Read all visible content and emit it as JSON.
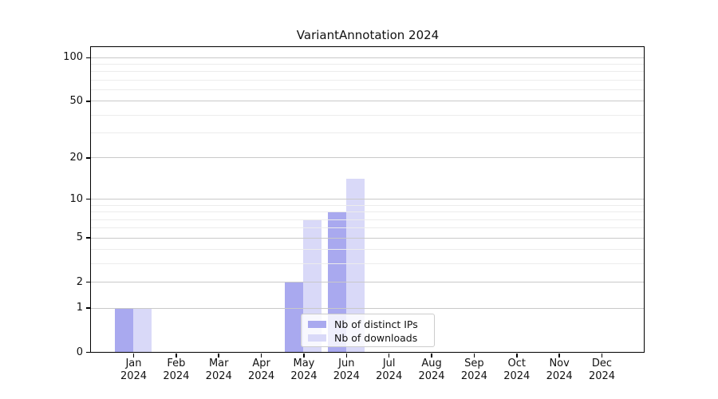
{
  "chart_data": {
    "type": "bar",
    "title": "VariantAnnotation 2024",
    "year": "2024",
    "months": [
      "Jan",
      "Feb",
      "Mar",
      "Apr",
      "May",
      "Jun",
      "Jul",
      "Aug",
      "Sep",
      "Oct",
      "Nov",
      "Dec"
    ],
    "series": [
      {
        "name": "Nb of distinct IPs",
        "color": "#a9a9ef",
        "values": [
          1,
          0,
          0,
          0,
          2,
          8,
          0,
          0,
          0,
          0,
          0,
          0
        ]
      },
      {
        "name": "Nb of downloads",
        "color": "#d9d9f8",
        "values": [
          1,
          0,
          0,
          0,
          7,
          14,
          0,
          0,
          0,
          0,
          0,
          0
        ]
      }
    ],
    "xlabel": "",
    "ylabel": "",
    "y_scale": "log1p",
    "ylim": [
      0,
      117.5
    ],
    "y_tick_labels": [
      100,
      50,
      20,
      10,
      5,
      2,
      1,
      0
    ],
    "y_minor_gridlines": [
      3,
      4,
      6,
      7,
      8,
      9,
      30,
      40,
      60,
      70,
      80,
      90
    ],
    "grid": "horizontal",
    "legend_position": "lower center"
  },
  "colors": {
    "grid_major": "#c9c9c9",
    "grid_minor": "#ececec",
    "spine": "#000000",
    "background": "#ffffff"
  }
}
